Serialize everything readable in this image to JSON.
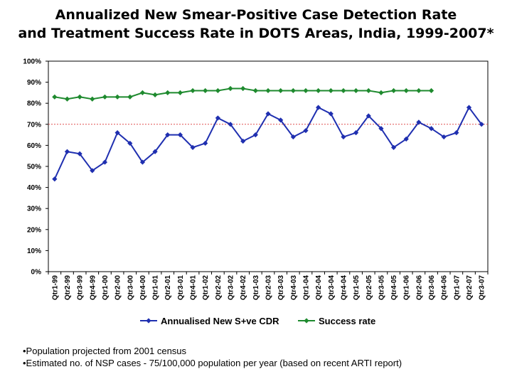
{
  "title_line1": "Annualized New Smear-Positive Case Detection Rate",
  "title_line2": "and Treatment Success Rate in DOTS Areas, India, 1999-2007*",
  "notes": [
    "•Population projected from 2001 census",
    "•Estimated no. of NSP cases - 75/100,000 population per year (based on recent ARTI report)"
  ],
  "chart_data": {
    "type": "line",
    "categories": [
      "Qtr1-99",
      "Qtr2-99",
      "Qtr3-99",
      "Qtr4-99",
      "Qtr1-00",
      "Qtr2-00",
      "Qtr3-00",
      "Qtr4-00",
      "Qtr1-01",
      "Qtr2-01",
      "Qtr3-01",
      "Qtr4-01",
      "Qtr1-02",
      "Qtr2-02",
      "Qtr3-02",
      "Qtr4-02",
      "Qtr1-03",
      "Qtr2-03",
      "Qtr3-03",
      "Qtr4-03",
      "Qtr1-04",
      "Qtr2-04",
      "Qtr3-04",
      "Qtr4-04",
      "Qtr1-05",
      "Qtr2-05",
      "Qtr3-05",
      "Qtr4-05",
      "Qtr1-06",
      "Qtr2-06",
      "Qtr3-06",
      "Qtr4-06",
      "Qtr1-07",
      "Qtr2-07",
      "Qtr3-07"
    ],
    "series": [
      {
        "name": "Annualised New S+ve CDR",
        "color": "#1f2fb0",
        "marker": "diamond",
        "values": [
          44,
          57,
          56,
          48,
          52,
          66,
          61,
          52,
          57,
          65,
          65,
          59,
          61,
          73,
          70,
          62,
          65,
          75,
          72,
          64,
          67,
          78,
          75,
          64,
          66,
          74,
          68,
          59,
          63,
          71,
          68,
          64,
          66,
          78,
          70
        ]
      },
      {
        "name": "Success rate",
        "color": "#1e8a2e",
        "marker": "diamond",
        "values": [
          83,
          82,
          83,
          82,
          83,
          83,
          83,
          85,
          84,
          85,
          85,
          86,
          86,
          86,
          87,
          87,
          86,
          86,
          86,
          86,
          86,
          86,
          86,
          86,
          86,
          86,
          85,
          86,
          86,
          86,
          86,
          null,
          null,
          null,
          null
        ]
      }
    ],
    "reference_line": {
      "value": 70,
      "style": "dashed",
      "color": "#e05050"
    },
    "ylim": [
      0,
      100
    ],
    "yticks": [
      "0%",
      "10%",
      "20%",
      "30%",
      "40%",
      "50%",
      "60%",
      "70%",
      "80%",
      "90%",
      "100%"
    ],
    "legend_position": "bottom",
    "grid": false
  }
}
